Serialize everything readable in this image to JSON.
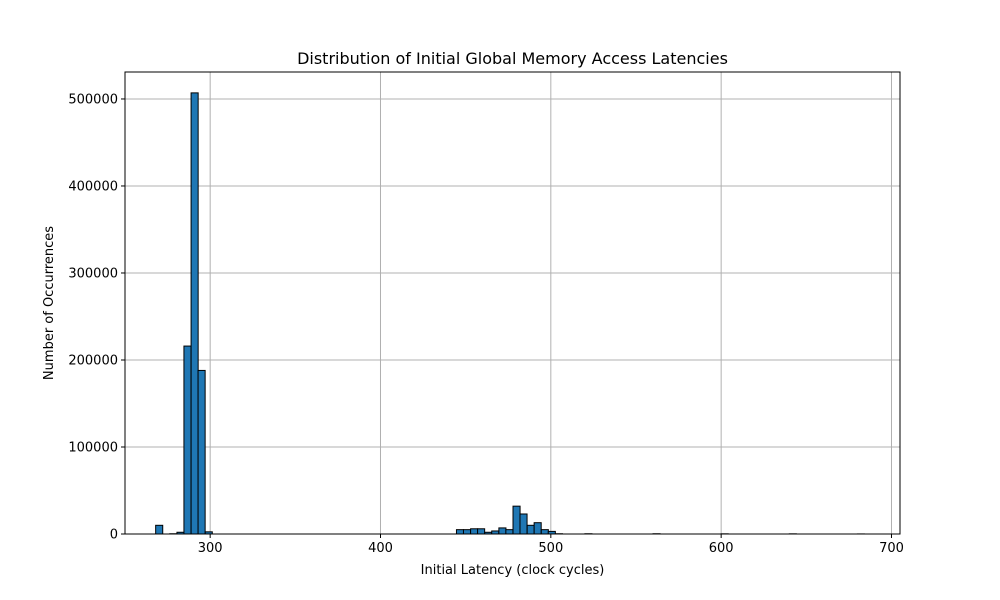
{
  "chart_data": {
    "type": "bar",
    "title": "Distribution of Initial Global Memory Access Latencies",
    "xlabel": "Initial Latency (clock cycles)",
    "ylabel": "Number of Occurrences",
    "xlim": [
      250,
      705
    ],
    "ylim": [
      0,
      531000
    ],
    "grid": true,
    "bar_color": "#1f77b4",
    "edge_color": "#000000",
    "bin_width": 4.15,
    "xticks": [
      300,
      400,
      500,
      600,
      700
    ],
    "xtick_labels": [
      "300",
      "400",
      "500",
      "600",
      "700"
    ],
    "yticks": [
      0,
      100000,
      200000,
      300000,
      400000,
      500000
    ],
    "ytick_labels": [
      "0",
      "100000",
      "200000",
      "300000",
      "400000",
      "500000"
    ],
    "bins": [
      {
        "x": 268.0,
        "value": 10000
      },
      {
        "x": 272.2,
        "value": 0
      },
      {
        "x": 276.3,
        "value": 300
      },
      {
        "x": 280.5,
        "value": 2000
      },
      {
        "x": 284.6,
        "value": 216000
      },
      {
        "x": 288.8,
        "value": 507000
      },
      {
        "x": 292.9,
        "value": 188000
      },
      {
        "x": 297.1,
        "value": 2500
      },
      {
        "x": 301.2,
        "value": 0
      },
      {
        "x": 444.6,
        "value": 5000
      },
      {
        "x": 448.7,
        "value": 5000
      },
      {
        "x": 452.9,
        "value": 6000
      },
      {
        "x": 457.0,
        "value": 6000
      },
      {
        "x": 461.2,
        "value": 2000
      },
      {
        "x": 465.3,
        "value": 3500
      },
      {
        "x": 469.5,
        "value": 7000
      },
      {
        "x": 473.6,
        "value": 5000
      },
      {
        "x": 477.8,
        "value": 32000
      },
      {
        "x": 481.9,
        "value": 23000
      },
      {
        "x": 486.1,
        "value": 10000
      },
      {
        "x": 490.2,
        "value": 13000
      },
      {
        "x": 494.4,
        "value": 5000
      },
      {
        "x": 498.5,
        "value": 3000
      },
      {
        "x": 502.7,
        "value": 300
      },
      {
        "x": 520.0,
        "value": 300
      },
      {
        "x": 560.0,
        "value": 300
      },
      {
        "x": 600.0,
        "value": 200
      },
      {
        "x": 640.0,
        "value": 200
      },
      {
        "x": 680.0,
        "value": 100
      }
    ]
  }
}
